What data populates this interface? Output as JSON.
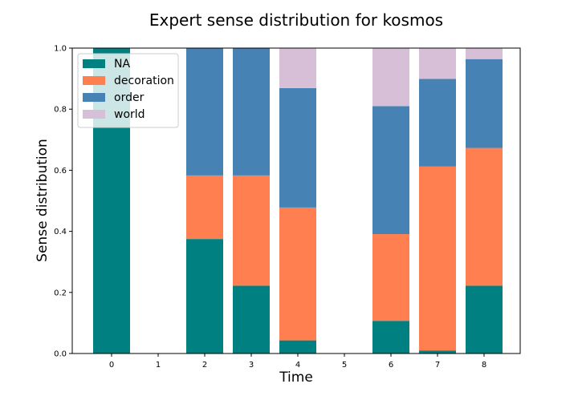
{
  "chart_data": {
    "type": "bar",
    "stacked": true,
    "title": "Expert sense distribution for kosmos",
    "xlabel": "Time",
    "ylabel": "Sense distribution",
    "categories": [
      "0",
      "1",
      "2",
      "3",
      "4",
      "5",
      "6",
      "7",
      "8"
    ],
    "ylim": [
      0,
      1.0
    ],
    "yticks": [
      "0.0",
      "0.2",
      "0.4",
      "0.6",
      "0.8",
      "1.0"
    ],
    "legend_position": "top-left",
    "grid": false,
    "series": [
      {
        "name": "NA",
        "color": "#008080",
        "values": [
          1.0,
          0,
          0.375,
          0.222,
          0.043,
          0,
          0.107,
          0.01,
          0.222
        ]
      },
      {
        "name": "decoration",
        "color": "#ff7f50",
        "values": [
          0,
          0,
          0.208,
          0.361,
          0.435,
          0,
          0.284,
          0.602,
          0.451
        ]
      },
      {
        "name": "order",
        "color": "#4682b4",
        "values": [
          0,
          0,
          0.417,
          0.417,
          0.391,
          0,
          0.419,
          0.287,
          0.291
        ]
      },
      {
        "name": "world",
        "color": "#d8bfd8",
        "values": [
          0,
          0,
          0,
          0,
          0.131,
          0,
          0.19,
          0.101,
          0.036
        ]
      }
    ]
  }
}
